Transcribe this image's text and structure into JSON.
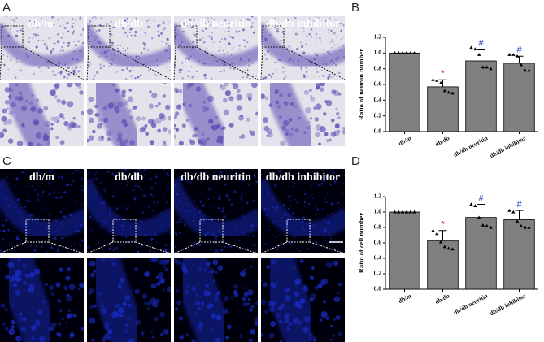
{
  "panels": {
    "A": {
      "label": "A",
      "columns": [
        "db/m",
        "db/db",
        "db/db neuritin",
        "db/db inhibitor"
      ]
    },
    "C": {
      "label": "C",
      "columns": [
        "db/m",
        "db/db",
        "db/db neuritin",
        "db/db inhibitor"
      ]
    }
  },
  "chart_data": [
    {
      "type": "bar",
      "label": "B",
      "ylabel": "Ratio of neuron number",
      "categories": [
        "db/m",
        "db/db",
        "db/db neuritin",
        "db/db inhibitor"
      ],
      "values": [
        1.0,
        0.57,
        0.9,
        0.87
      ],
      "errors": [
        0,
        0.09,
        0.15,
        0.09
      ],
      "points": [
        [
          1,
          1,
          1,
          1,
          1,
          1
        ],
        [
          0.66,
          0.65,
          0.62,
          0.52,
          0.5,
          0.49
        ],
        [
          1.07,
          1.05,
          0.98,
          0.82,
          0.82,
          0.8
        ],
        [
          0.98,
          0.98,
          0.96,
          0.85,
          0.78,
          0.78
        ]
      ],
      "markers": [
        null,
        "*",
        "#",
        "#"
      ],
      "marker_colors": [
        null,
        "#e02020",
        "#2a3fc8",
        "#2a3fc8"
      ],
      "color": "#808080",
      "ylim": [
        0,
        1.2
      ],
      "yticks": [
        {
          "value": 0,
          "label": "0.0"
        },
        {
          "value": 0.2,
          "label": "0.2"
        },
        {
          "value": 0.4,
          "label": "0.4"
        },
        {
          "value": 0.6,
          "label": "0.6"
        },
        {
          "value": 0.8,
          "label": "0.8"
        },
        {
          "value": 1,
          "label": "1.0"
        },
        {
          "value": 1.2,
          "label": "1.2"
        }
      ]
    },
    {
      "type": "bar",
      "label": "D",
      "ylabel": "Ratio of cell number",
      "categories": [
        "db/m",
        "db/db",
        "db/db neuritin",
        "db/db inhibitor"
      ],
      "values": [
        1.0,
        0.63,
        0.93,
        0.9
      ],
      "errors": [
        0,
        0.13,
        0.17,
        0.12
      ],
      "points": [
        [
          1,
          1,
          1,
          1,
          1,
          1
        ],
        [
          0.76,
          0.72,
          0.61,
          0.55,
          0.53,
          0.52
        ],
        [
          1.1,
          1.08,
          0.93,
          0.83,
          0.82,
          0.8
        ],
        [
          1.02,
          1.0,
          0.88,
          0.82,
          0.8,
          0.8
        ]
      ],
      "markers": [
        null,
        "*",
        "#",
        "#"
      ],
      "marker_colors": [
        null,
        "#e02020",
        "#2a3fc8",
        "#2a3fc8"
      ],
      "color": "#808080",
      "ylim": [
        0,
        1.2
      ],
      "yticks": [
        {
          "value": 0,
          "label": "0.0"
        },
        {
          "value": 0.2,
          "label": "0.2"
        },
        {
          "value": 0.4,
          "label": "0.4"
        },
        {
          "value": 0.6,
          "label": "0.6"
        },
        {
          "value": 0.8,
          "label": "0.8"
        },
        {
          "value": 1,
          "label": "1.0"
        },
        {
          "value": 1.2,
          "label": "1.2"
        }
      ]
    }
  ]
}
